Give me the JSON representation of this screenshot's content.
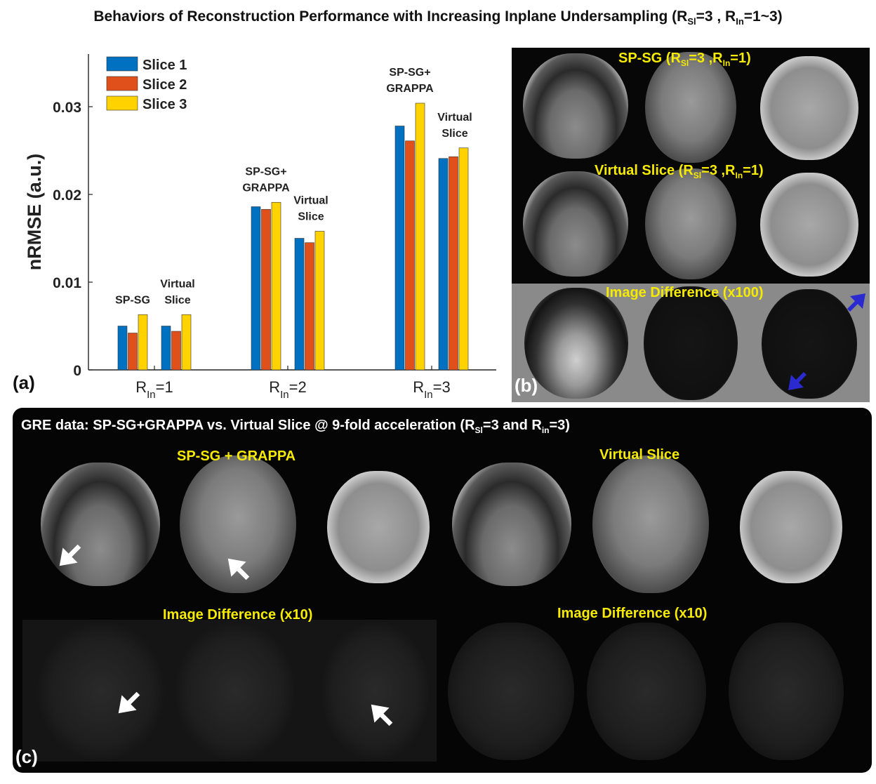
{
  "title": {
    "pre": "Behaviors of Reconstruction Performance with Increasing Inplane Undersampling (R",
    "sub1": "Sl",
    "mid": "=3 , R",
    "sub2": "In",
    "post": "=1~3)"
  },
  "chart_data": {
    "type": "bar",
    "ylabel": "nRMSE (a.u.)",
    "ylim": [
      0,
      0.036
    ],
    "yticks": [
      0,
      0.01,
      0.02,
      0.03
    ],
    "ytick_labels": [
      "0",
      "0.01",
      "0.02",
      "0.03"
    ],
    "legend": {
      "placement": "top-left",
      "entries": [
        "Slice 1",
        "Slice 2",
        "Slice 3"
      ],
      "colors": [
        "#0070C0",
        "#E0501A",
        "#FFD200"
      ]
    },
    "groups": [
      {
        "label_main": "R",
        "label_sub": "In",
        "label_tail": "=1",
        "methods": [
          {
            "label_lines": [
              "SP-SG"
            ],
            "values": [
              0.005,
              0.0042,
              0.0063
            ]
          },
          {
            "label_lines": [
              "Virtual",
              "Slice"
            ],
            "values": [
              0.005,
              0.0044,
              0.0063
            ]
          }
        ]
      },
      {
        "label_main": "R",
        "label_sub": "In",
        "label_tail": "=2",
        "methods": [
          {
            "label_lines": [
              "SP-SG+",
              "GRAPPA"
            ],
            "values": [
              0.0186,
              0.0183,
              0.0191
            ]
          },
          {
            "label_lines": [
              "Virtual",
              "Slice"
            ],
            "values": [
              0.015,
              0.0145,
              0.0158
            ]
          }
        ]
      },
      {
        "label_main": "R",
        "label_sub": "In",
        "label_tail": "=3",
        "methods": [
          {
            "label_lines": [
              "SP-SG+",
              "GRAPPA"
            ],
            "values": [
              0.0278,
              0.0261,
              0.0304
            ]
          },
          {
            "label_lines": [
              "Virtual",
              "Slice"
            ],
            "values": [
              0.0241,
              0.0243,
              0.0253
            ]
          }
        ]
      }
    ]
  },
  "panel_a": {
    "label": "(a)"
  },
  "panel_b": {
    "label": "(b)",
    "row1": {
      "pre": "SP-SG (R",
      "sub1": "Sl",
      "mid": "=3 ,R",
      "sub2": "In",
      "post": "=1)"
    },
    "row2": {
      "pre": "Virtual Slice (R",
      "sub1": "Sl",
      "mid": "=3 ,R",
      "sub2": "In",
      "post": "=1)"
    },
    "row3": "Image Difference (x100)",
    "arrow_color": "#2a2ad0"
  },
  "panel_c": {
    "label": "(c)",
    "title": {
      "pre": "GRE data: SP-SG+GRAPPA vs. Virtual Slice @ 9-fold acceleration (R",
      "sub1": "Sl",
      "mid": "=3 and R",
      "sub2": "in",
      "post": "=3)"
    },
    "left_title": "SP-SG + GRAPPA",
    "right_title": "Virtual Slice",
    "left_diff_title": "Image Difference (x10)",
    "right_diff_title": "Image Difference (x10)"
  }
}
